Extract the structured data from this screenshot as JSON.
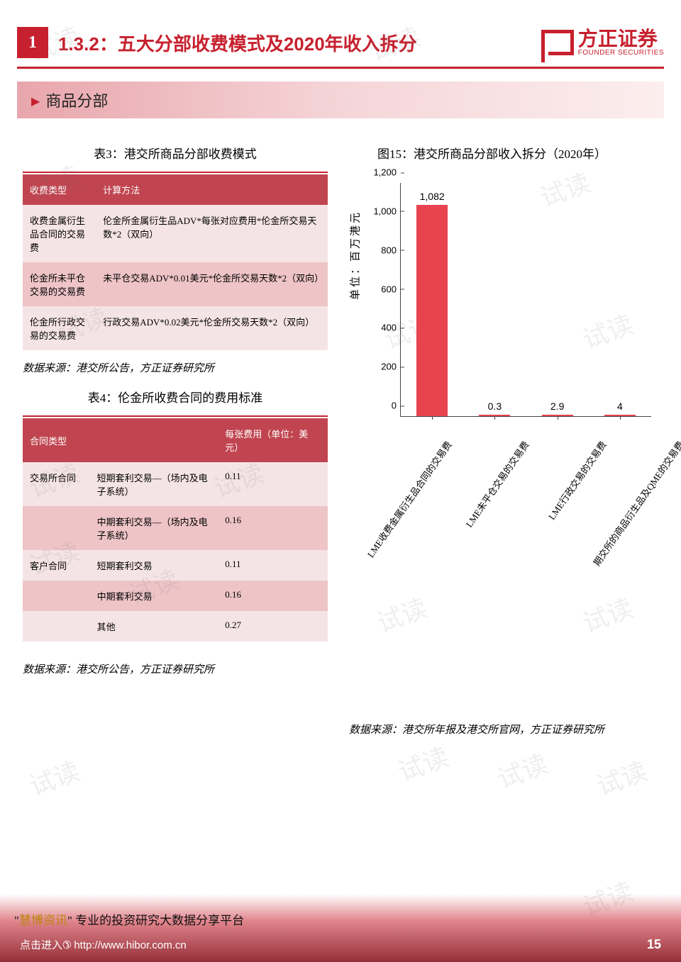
{
  "watermark_text": "试读",
  "header": {
    "section_number": "1",
    "title": "1.3.2：五大分部收费模式及2020年收入拆分",
    "logo_cn": "方正证券",
    "logo_en": "FOUNDER SECURITIES"
  },
  "banner": "商品分部",
  "table3": {
    "caption": "表3：港交所商品分部收费模式",
    "headers": [
      "收费类型",
      "计算方法"
    ],
    "rows": [
      [
        "收费金属衍生品合同的交易费",
        "伦金所金属衍生品ADV*每张对应费用*伦金所交易天数*2（双向）"
      ],
      [
        "伦金所未平仓交易的交易费",
        "未平仓交易ADV*0.01美元*伦金所交易天数*2（双向）"
      ],
      [
        "伦金所行政交易的交易费",
        "行政交易ADV*0.02美元*伦金所交易天数*2（双向）"
      ]
    ],
    "source": "数据来源：港交所公告，方正证券研究所"
  },
  "table4": {
    "caption": "表4：伦金所收费合同的费用标准",
    "headers": [
      "合同类型",
      "",
      "每张费用（单位：美元）"
    ],
    "rows": [
      [
        "交易所合同",
        "短期套利交易—（场内及电子系统）",
        "0.11"
      ],
      [
        "",
        "中期套利交易—（场内及电子系统）",
        "0.16"
      ],
      [
        "客户合同",
        "短期套利交易",
        "0.11"
      ],
      [
        "",
        "中期套利交易",
        "0.16"
      ],
      [
        "",
        "其他",
        "0.27"
      ]
    ],
    "source": "数据来源：港交所公告，方正证券研究所"
  },
  "chart": {
    "caption": "图15：港交所商品分部收入拆分（2020年）",
    "type": "bar",
    "ylabel": "单位：百万港元",
    "ylim": [
      0,
      1200
    ],
    "ytick_step": 200,
    "yticks": [
      "0",
      "200",
      "400",
      "600",
      "800",
      "1,000",
      "1,200"
    ],
    "categories": [
      "LME收费金属衍生品合同的交易费",
      "LME未平仓交易的交易费",
      "LME行政交易的交易费",
      "期交所的商品衍生品及QME的交易费"
    ],
    "values": [
      1082,
      0.3,
      2.9,
      4
    ],
    "value_labels": [
      "1,082",
      "0.3",
      "2.9",
      "4"
    ],
    "bar_color": "#e8444f",
    "axis_color": "#444444",
    "label_fontsize": 13,
    "value_fontsize": 14,
    "source": "数据来源：港交所年报及港交所官网，方正证券研究所"
  },
  "footer": {
    "overlay_prefix": "\"",
    "overlay_brand": "慧博资讯",
    "overlay_rest": "\" 专业的投资研究大数据分享平台",
    "link_text": "点击进入",
    "url": "http://www.hibor.com.cn",
    "page_number": "15"
  },
  "colors": {
    "brand": "#c7202e",
    "th_bg": "#c04550",
    "row_light": "#f5e4e5",
    "row_dark": "#eec4c7"
  }
}
